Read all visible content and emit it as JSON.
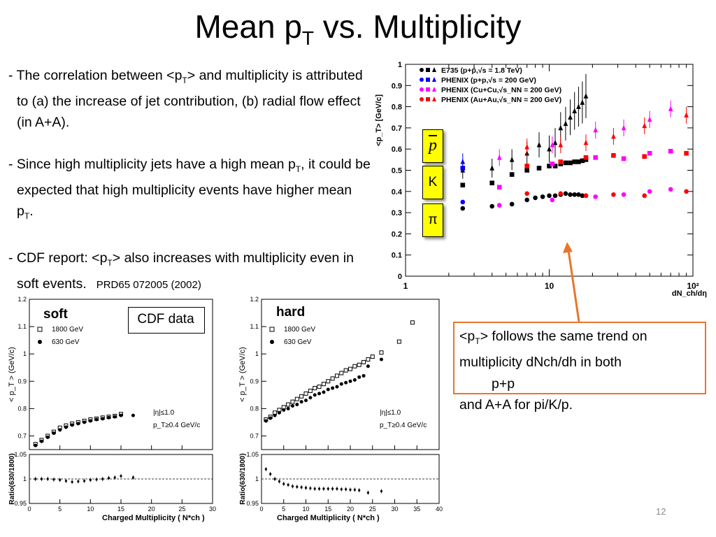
{
  "slide": {
    "title": {
      "main": "Mean p",
      "sub": "T",
      "rest": " vs. Multiplicity"
    },
    "page_number": "12"
  },
  "bullets": [
    {
      "id": "b1",
      "parts": [
        "- The correlation between <p",
        "T",
        "> and multiplicity is attributed to (a) the increase of jet contribution, (b) radial flow effect (in A+A)."
      ]
    },
    {
      "id": "b2",
      "parts": [
        "- Since high multiplicity jets have a high mean p",
        "T",
        ", it could be expected that high multiplicity events have higher mean p",
        "T",
        "."
      ]
    },
    {
      "id": "b3",
      "parts": [
        "- CDF report: <p",
        "T",
        "> also increases with multiplicity even in soft events."
      ],
      "reference": "PRD65 072005 (2002)"
    }
  ],
  "callout": {
    "parts": [
      "<p",
      "T",
      "> follows the same trend on multiplicity dNch/dh in both"
    ],
    "line2": "p+p",
    "line3": "and A+A for pi/K/p.",
    "border_color": "#e8752b"
  },
  "particle_badges": [
    "p",
    "K",
    "π"
  ],
  "labels": {
    "soft": "soft",
    "hard": "hard",
    "cdf_data": "CDF data"
  },
  "chart_data": [
    {
      "type": "scatter",
      "xscale": "log",
      "xlim": [
        1,
        100
      ],
      "ylim": [
        0,
        1
      ],
      "ylabel": "<p_T> [GeV/c]",
      "xlabel": "dN_ch/dη",
      "x_ticks": [
        "1",
        "10",
        "10²"
      ],
      "y_ticks": [
        "0",
        "0.1",
        "0.2",
        "0.3",
        "0.4",
        "0.5",
        "0.6",
        "0.7",
        "0.8",
        "0.9",
        "1"
      ],
      "legend": [
        {
          "label": "E735 (p+p̄,√s = 1.8 TeV)",
          "color": "#000000"
        },
        {
          "label": "PHENIX (p+p,√s = 200 GeV)",
          "color": "#0000ff"
        },
        {
          "label": "PHENIX (Cu+Cu,√s_NN = 200 GeV)",
          "color": "#ff00ff"
        },
        {
          "label": "PHENIX (Au+Au,√s_NN = 200 GeV)",
          "color": "#ff0000"
        }
      ],
      "series": [
        {
          "name": "E735 π",
          "color": "#000000",
          "marker": "circle",
          "x": [
            2.5,
            4,
            5.5,
            7,
            8,
            9,
            10,
            11,
            12,
            13,
            14,
            15,
            16,
            17,
            18
          ],
          "y": [
            0.32,
            0.33,
            0.34,
            0.36,
            0.37,
            0.375,
            0.38,
            0.38,
            0.385,
            0.39,
            0.385,
            0.385,
            0.385,
            0.38,
            0.38
          ]
        },
        {
          "name": "E735 K",
          "color": "#000000",
          "marker": "square",
          "x": [
            2.5,
            4,
            5.5,
            7,
            8.5,
            10,
            11,
            12,
            13,
            14,
            15,
            16,
            17,
            18
          ],
          "y": [
            0.43,
            0.44,
            0.48,
            0.5,
            0.51,
            0.52,
            0.52,
            0.53,
            0.535,
            0.535,
            0.54,
            0.54,
            0.545,
            0.55
          ]
        },
        {
          "name": "E735 p̄",
          "color": "#000000",
          "marker": "triangle",
          "x": [
            2.5,
            4,
            5.5,
            7,
            8.5,
            10,
            11,
            12,
            13,
            14,
            15,
            16,
            17,
            18
          ],
          "y": [
            0.5,
            0.51,
            0.55,
            0.58,
            0.62,
            0.6,
            0.63,
            0.7,
            0.72,
            0.75,
            0.78,
            0.8,
            0.82,
            0.85
          ]
        },
        {
          "name": "PHENIX p+p π",
          "color": "#0000ff",
          "marker": "circle",
          "x": [
            2.5
          ],
          "y": [
            0.35
          ]
        },
        {
          "name": "PHENIX p+p K",
          "color": "#0000ff",
          "marker": "square",
          "x": [
            2.5
          ],
          "y": [
            0.51
          ]
        },
        {
          "name": "PHENIX p+p p",
          "color": "#0000ff",
          "marker": "triangle",
          "x": [
            2.5
          ],
          "y": [
            0.54
          ]
        },
        {
          "name": "PHENIX Cu+Cu π",
          "color": "#ff00ff",
          "marker": "circle",
          "x": [
            4.5,
            10.5,
            21,
            33,
            50,
            70
          ],
          "y": [
            0.335,
            0.36,
            0.375,
            0.385,
            0.4,
            0.41
          ]
        },
        {
          "name": "PHENIX Cu+Cu K",
          "color": "#ff00ff",
          "marker": "square",
          "x": [
            4.5,
            10.5,
            21,
            33,
            50,
            70
          ],
          "y": [
            0.42,
            0.53,
            0.56,
            0.555,
            0.58,
            0.59
          ]
        },
        {
          "name": "PHENIX Cu+Cu p",
          "color": "#ff00ff",
          "marker": "triangle",
          "x": [
            4.5,
            10.5,
            21,
            33,
            50,
            70
          ],
          "y": [
            0.56,
            0.62,
            0.69,
            0.7,
            0.74,
            0.79
          ]
        },
        {
          "name": "PHENIX Au+Au π",
          "color": "#ff0000",
          "marker": "circle",
          "x": [
            7,
            12,
            18,
            28,
            46,
            90
          ],
          "y": [
            0.39,
            0.39,
            0.38,
            0.385,
            0.38,
            0.4
          ]
        },
        {
          "name": "PHENIX Au+Au K",
          "color": "#ff0000",
          "marker": "square",
          "x": [
            7,
            12,
            18,
            28,
            46,
            90
          ],
          "y": [
            0.52,
            0.54,
            0.56,
            0.57,
            0.565,
            0.58
          ]
        },
        {
          "name": "PHENIX Au+Au p",
          "color": "#ff0000",
          "marker": "triangle",
          "x": [
            7,
            12,
            18,
            28,
            46,
            90
          ],
          "y": [
            0.61,
            0.62,
            0.63,
            0.66,
            0.71,
            0.76
          ]
        }
      ]
    },
    {
      "type": "scatter",
      "panel": "soft",
      "xlim": [
        0,
        30
      ],
      "ylim": [
        0.65,
        1.2
      ],
      "ylabel": "< p_T > (GeV/c)",
      "y_ticks": [
        "0.7",
        "0.8",
        "0.9",
        "1",
        "1.1",
        "1.2"
      ],
      "x_ticks": [
        "0",
        "5",
        "10",
        "15",
        "20",
        "25",
        "30"
      ],
      "annotations": [
        "|η|≤1.0",
        "p_T≥0.4 GeV/c"
      ],
      "legend": [
        {
          "label": "1800 GeV",
          "marker": "open-square"
        },
        {
          "label": "630 GeV",
          "marker": "filled-circle"
        }
      ],
      "series": [
        {
          "name": "1800 GeV",
          "marker": "open-square",
          "x": [
            1,
            2,
            3,
            4,
            5,
            6,
            7,
            8,
            9,
            10,
            11,
            12,
            13,
            14,
            15
          ],
          "y": [
            0.67,
            0.685,
            0.7,
            0.715,
            0.73,
            0.738,
            0.745,
            0.75,
            0.755,
            0.76,
            0.763,
            0.767,
            0.77,
            0.773,
            0.78
          ]
        },
        {
          "name": "630 GeV",
          "marker": "filled-circle",
          "x": [
            1,
            2,
            3,
            4,
            5,
            6,
            7,
            8,
            9,
            10,
            11,
            12,
            13,
            14,
            15,
            17
          ],
          "y": [
            0.665,
            0.68,
            0.695,
            0.71,
            0.722,
            0.732,
            0.74,
            0.745,
            0.75,
            0.755,
            0.76,
            0.763,
            0.767,
            0.77,
            0.775,
            0.775
          ]
        }
      ],
      "ratio": {
        "ylabel": "Ratio(630/1800)",
        "ylim": [
          0.95,
          1.05
        ],
        "y_ticks": [
          "0.95",
          "1",
          "1.05"
        ],
        "xlabel": "Charged Multiplicity ( N*ch )",
        "x": [
          1,
          2,
          3,
          4,
          5,
          6,
          7,
          8,
          9,
          10,
          11,
          12,
          13,
          14,
          15,
          17
        ],
        "y": [
          1.0,
          1.0,
          1.0,
          0.999,
          0.998,
          0.996,
          0.994,
          0.995,
          0.996,
          0.998,
          0.999,
          1.0,
          1.002,
          1.003,
          1.006,
          1.003
        ]
      }
    },
    {
      "type": "scatter",
      "panel": "hard",
      "xlim": [
        0,
        40
      ],
      "ylim": [
        0.65,
        1.2
      ],
      "ylabel": "< p_T > (GeV/c)",
      "y_ticks": [
        "0.7",
        "0.8",
        "0.9",
        "1",
        "1.1",
        "1.2"
      ],
      "x_ticks": [
        "0",
        "5",
        "10",
        "15",
        "20",
        "25",
        "30",
        "35",
        "40"
      ],
      "annotations": [
        "|η|≤1.0",
        "p_T≥0.4 GeV/c"
      ],
      "legend": [
        {
          "label": "1800 GeV",
          "marker": "open-square"
        },
        {
          "label": "630 GeV",
          "marker": "filled-circle"
        }
      ],
      "series": [
        {
          "name": "1800 GeV",
          "marker": "open-square",
          "x": [
            1,
            2,
            3,
            4,
            5,
            6,
            7,
            8,
            9,
            10,
            11,
            12,
            13,
            14,
            15,
            16,
            17,
            18,
            19,
            20,
            21,
            22,
            23,
            24,
            25,
            27,
            31,
            34
          ],
          "y": [
            0.76,
            0.77,
            0.785,
            0.795,
            0.805,
            0.815,
            0.825,
            0.835,
            0.845,
            0.855,
            0.865,
            0.875,
            0.88,
            0.89,
            0.9,
            0.91,
            0.92,
            0.93,
            0.94,
            0.945,
            0.955,
            0.96,
            0.97,
            0.98,
            0.99,
            1.005,
            1.045,
            1.115
          ]
        },
        {
          "name": "630 GeV",
          "marker": "filled-circle",
          "x": [
            1,
            2,
            3,
            4,
            5,
            6,
            7,
            8,
            9,
            10,
            11,
            12,
            13,
            14,
            15,
            16,
            17,
            18,
            19,
            20,
            21,
            22,
            23,
            24,
            27
          ],
          "y": [
            0.755,
            0.765,
            0.775,
            0.785,
            0.795,
            0.8,
            0.81,
            0.815,
            0.825,
            0.83,
            0.84,
            0.85,
            0.855,
            0.86,
            0.87,
            0.875,
            0.88,
            0.89,
            0.895,
            0.9,
            0.905,
            0.915,
            0.92,
            0.955,
            0.98
          ]
        }
      ],
      "ratio": {
        "ylabel": "Ratio(630/1800)",
        "ylim": [
          0.95,
          1.05
        ],
        "y_ticks": [
          "0.95",
          "1",
          "1.05"
        ],
        "xlabel": "Charged Multiplicity ( N*ch )",
        "x": [
          1,
          2,
          3,
          4,
          5,
          6,
          7,
          8,
          9,
          10,
          11,
          12,
          13,
          14,
          15,
          16,
          17,
          18,
          19,
          20,
          21,
          22,
          24,
          27
        ],
        "y": [
          1.02,
          1.01,
          1.0,
          0.995,
          0.99,
          0.988,
          0.985,
          0.984,
          0.983,
          0.982,
          0.981,
          0.98,
          0.98,
          0.98,
          0.98,
          0.98,
          0.98,
          0.979,
          0.979,
          0.978,
          0.978,
          0.977,
          0.972,
          0.975
        ]
      }
    }
  ]
}
